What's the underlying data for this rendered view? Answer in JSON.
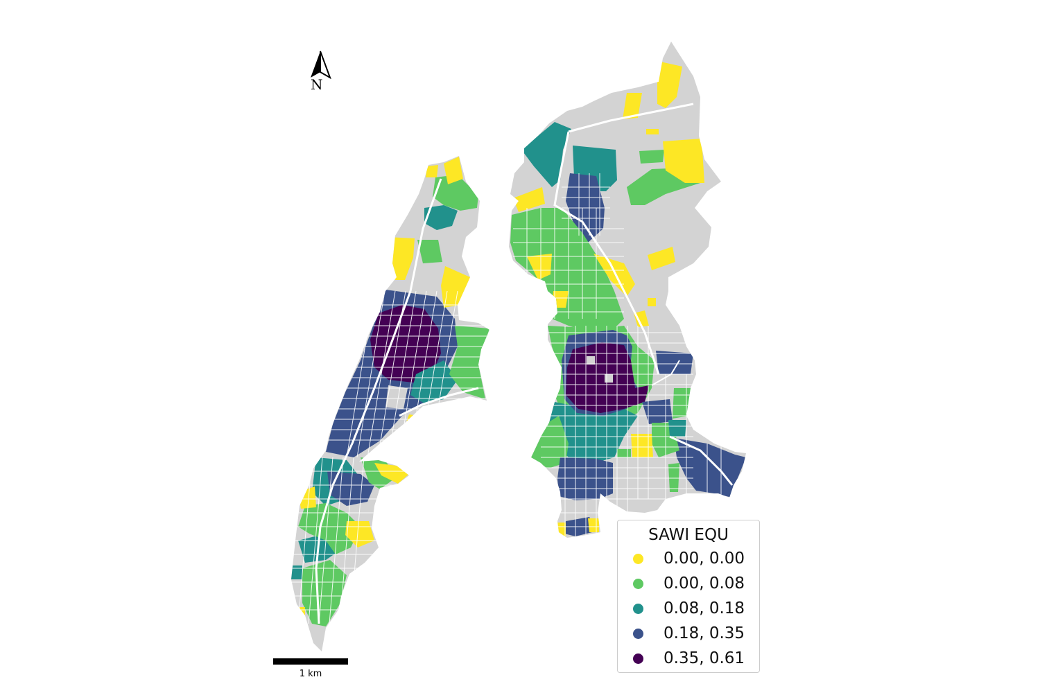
{
  "legend": {
    "title": "SAWI EQU",
    "items": [
      {
        "label": "0.00, 0.00",
        "color": "#fde725"
      },
      {
        "label": "0.00, 0.08",
        "color": "#5ec962"
      },
      {
        "label": "0.08, 0.18",
        "color": "#21918c"
      },
      {
        "label": "0.18, 0.35",
        "color": "#3b528b"
      },
      {
        "label": "0.35, 0.61",
        "color": "#440154"
      }
    ]
  },
  "no_data_color": "#d3d3d3",
  "north_arrow": {
    "letter": "N",
    "icon": "north-arrow-icon"
  },
  "scale_bar": {
    "label": "1 km"
  }
}
